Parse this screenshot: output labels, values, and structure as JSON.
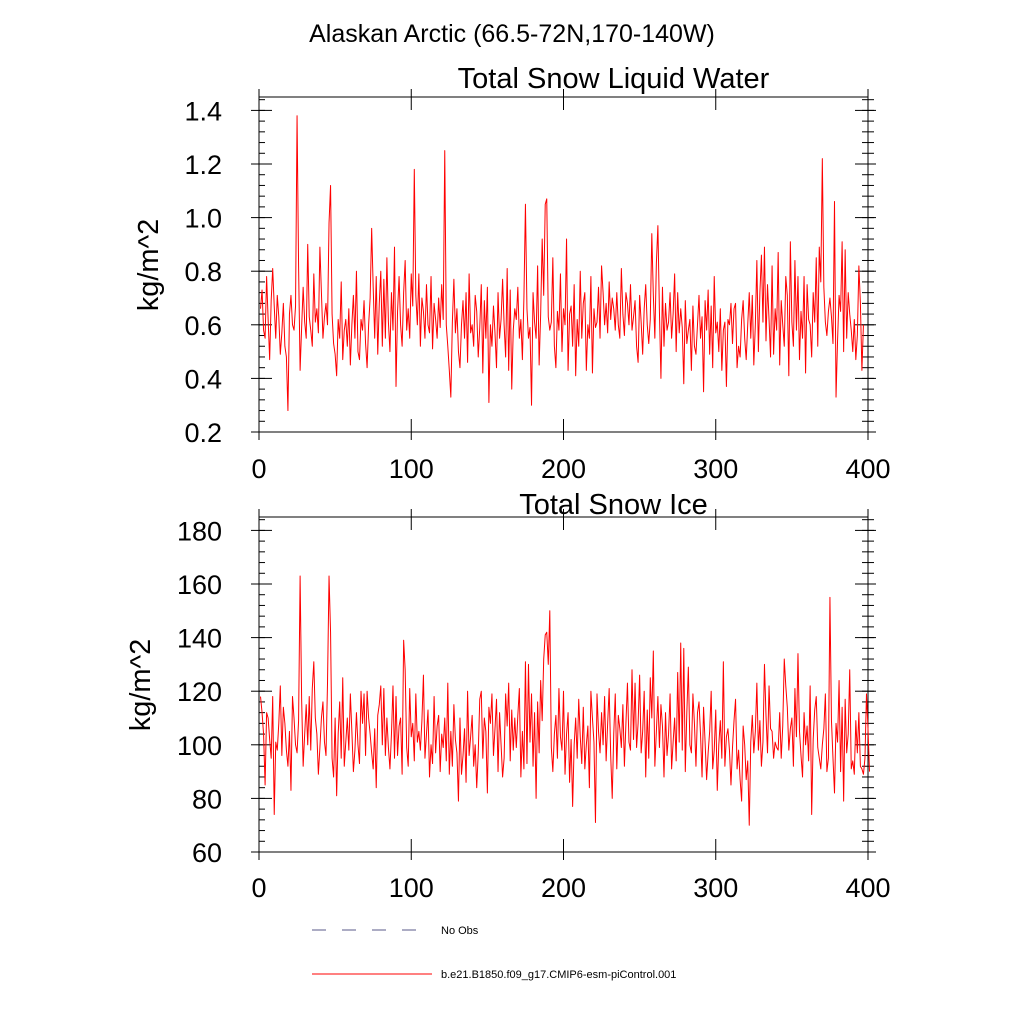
{
  "figure": {
    "title": "Alaskan Arctic (66.5-72N,170-140W)"
  },
  "legend": {
    "entries": [
      {
        "label": "No Obs",
        "color": "#5a5a8a",
        "style": "dashed"
      },
      {
        "label": "b.e21.B1850.f09_g17.CMIP6-esm-piControl.001",
        "color": "#ff0000",
        "style": "solid"
      }
    ]
  },
  "colors": {
    "series": "#ff0000",
    "axis": "#000000"
  },
  "chart_data": [
    {
      "type": "line",
      "title": "Total Snow Liquid Water",
      "ylabel": "kg/m^2",
      "xlabel": "",
      "xlim": [
        0,
        400
      ],
      "ylim": [
        0.2,
        1.45
      ],
      "xticks": [
        0,
        100,
        200,
        300,
        400
      ],
      "xtick_labels": [
        "0",
        "100",
        "200",
        "300",
        "400"
      ],
      "yticks": [
        0.2,
        0.4,
        0.6,
        0.8,
        1.0,
        1.2,
        1.4
      ],
      "ytick_labels": [
        "0.2",
        "0.4",
        "0.6",
        "0.8",
        "1.0",
        "1.2",
        "1.4"
      ],
      "grid": false,
      "series": [
        {
          "name": "b.e21.B1850.f09_g17.CMIP6-esm-piControl.001",
          "x_start": 1,
          "x_step": 1,
          "values": [
            0.66,
            0.73,
            0.58,
            0.55,
            0.78,
            0.62,
            0.47,
            0.69,
            0.81,
            0.67,
            0.55,
            0.71,
            0.63,
            0.49,
            0.57,
            0.68,
            0.52,
            0.48,
            0.28,
            0.64,
            0.71,
            0.6,
            0.58,
            0.67,
            1.38,
            0.82,
            0.43,
            0.59,
            0.74,
            0.61,
            0.55,
            0.9,
            0.63,
            0.58,
            0.52,
            0.79,
            0.61,
            0.66,
            0.57,
            0.89,
            0.72,
            0.55,
            0.63,
            0.68,
            0.6,
            0.98,
            1.12,
            0.64,
            0.53,
            0.49,
            0.41,
            0.62,
            0.55,
            0.76,
            0.47,
            0.58,
            0.62,
            0.52,
            0.66,
            0.45,
            0.6,
            0.71,
            0.55,
            0.8,
            0.5,
            0.47,
            0.62,
            0.58,
            0.69,
            0.53,
            0.44,
            0.6,
            0.7,
            0.96,
            0.74,
            0.55,
            0.78,
            0.49,
            0.68,
            0.8,
            0.52,
            0.77,
            0.55,
            0.85,
            0.61,
            0.5,
            0.72,
            0.58,
            0.89,
            0.37,
            0.65,
            0.78,
            0.6,
            0.52,
            0.72,
            0.84,
            0.58,
            0.66,
            0.55,
            0.79,
            0.67,
            1.18,
            0.71,
            0.6,
            0.79,
            0.52,
            0.7,
            0.65,
            0.55,
            0.75,
            0.6,
            0.57,
            0.78,
            0.51,
            0.68,
            0.62,
            0.55,
            0.7,
            0.59,
            0.75,
            0.62,
            1.25,
            0.6,
            0.52,
            0.43,
            0.33,
            0.61,
            0.77,
            0.57,
            0.66,
            0.5,
            0.44,
            0.6,
            0.69,
            0.55,
            0.72,
            0.46,
            0.79,
            0.57,
            0.6,
            0.52,
            0.71,
            0.65,
            0.48,
            0.59,
            0.75,
            0.42,
            0.69,
            0.55,
            0.74,
            0.31,
            0.6,
            0.52,
            0.67,
            0.57,
            0.44,
            0.72,
            0.55,
            0.62,
            0.77,
            0.6,
            0.48,
            0.81,
            0.43,
            0.73,
            0.36,
            0.58,
            0.66,
            0.62,
            0.74,
            0.55,
            0.62,
            0.47,
            0.7,
            1.05,
            0.66,
            0.55,
            0.59,
            0.3,
            0.72,
            0.61,
            0.55,
            0.82,
            0.45,
            0.64,
            0.92,
            0.71,
            1.05,
            1.07,
            0.63,
            0.58,
            0.61,
            0.85,
            0.52,
            0.44,
            0.65,
            0.58,
            0.79,
            0.5,
            0.66,
            0.6,
            0.92,
            0.43,
            0.64,
            0.67,
            0.52,
            0.75,
            0.41,
            0.62,
            0.52,
            0.8,
            0.55,
            0.68,
            0.72,
            0.43,
            0.6,
            0.55,
            0.78,
            0.42,
            0.66,
            0.59,
            0.61,
            0.74,
            0.55,
            0.82,
            0.72,
            0.6,
            0.68,
            0.57,
            0.76,
            0.62,
            0.7,
            0.66,
            0.58,
            0.72,
            0.6,
            0.55,
            0.81,
            0.64,
            0.56,
            0.72,
            0.68,
            0.6,
            0.75,
            0.58,
            0.63,
            0.69,
            0.52,
            0.46,
            0.71,
            0.61,
            0.49,
            0.66,
            0.75,
            0.6,
            0.53,
            0.62,
            0.94,
            0.71,
            0.55,
            0.83,
            0.97,
            0.65,
            0.4,
            0.74,
            0.52,
            0.68,
            0.58,
            0.61,
            0.72,
            0.55,
            0.64,
            0.79,
            0.5,
            0.72,
            0.57,
            0.66,
            0.59,
            0.38,
            0.69,
            0.53,
            0.58,
            0.62,
            0.43,
            0.67,
            0.52,
            0.49,
            0.6,
            0.71,
            0.55,
            0.63,
            0.35,
            0.69,
            0.58,
            0.73,
            0.49,
            0.67,
            0.44,
            0.78,
            0.57,
            0.61,
            0.5,
            0.66,
            0.43,
            0.58,
            0.61,
            0.37,
            0.62,
            0.6,
            0.68,
            0.53,
            0.66,
            0.68,
            0.44,
            0.52,
            0.48,
            0.62,
            0.69,
            0.55,
            0.47,
            0.6,
            0.72,
            0.55,
            0.71,
            0.45,
            0.6,
            0.84,
            0.5,
            0.72,
            0.86,
            0.61,
            0.89,
            0.54,
            0.75,
            0.62,
            0.48,
            0.82,
            0.49,
            0.66,
            0.58,
            0.87,
            0.45,
            0.69,
            0.6,
            0.52,
            0.78,
            0.71,
            0.41,
            0.91,
            0.61,
            0.52,
            0.84,
            0.58,
            0.78,
            0.47,
            0.65,
            0.55,
            0.78,
            0.42,
            0.75,
            0.62,
            0.6,
            0.48,
            0.72,
            0.61,
            0.85,
            0.52,
            0.89,
            0.76,
            1.22,
            0.74,
            0.61,
            0.56,
            0.65,
            0.7,
            0.63,
            0.53,
            1.06,
            0.33,
            0.54,
            0.71,
            0.65,
            0.91,
            0.5,
            0.88,
            0.55,
            0.72,
            0.64,
            0.58,
            0.5,
            0.62,
            0.47,
            0.56,
            0.82,
            0.68,
            0.43,
            0.6
          ]
        }
      ]
    },
    {
      "type": "line",
      "title": "Total Snow Ice",
      "ylabel": "kg/m^2",
      "xlabel": "",
      "xlim": [
        0,
        400
      ],
      "ylim": [
        60,
        185
      ],
      "xticks": [
        0,
        100,
        200,
        300,
        400
      ],
      "xtick_labels": [
        "0",
        "100",
        "200",
        "300",
        "400"
      ],
      "yticks": [
        60,
        80,
        100,
        120,
        140,
        160,
        180
      ],
      "ytick_labels": [
        "60",
        "80",
        "100",
        "120",
        "140",
        "160",
        "180"
      ],
      "grid": false,
      "series": [
        {
          "name": "b.e21.B1850.f09_g17.CMIP6-esm-piControl.001",
          "x_start": 1,
          "x_step": 1,
          "values": [
            118,
            112,
            104,
            85,
            112,
            110,
            102,
            95,
            118,
            74,
            101,
            98,
            108,
            122,
            96,
            114,
            108,
            98,
            92,
            105,
            83,
            118,
            110,
            100,
            97,
            109,
            163,
            117,
            92,
            104,
            115,
            100,
            118,
            98,
            121,
            131,
            110,
            104,
            89,
            99,
            110,
            116,
            101,
            96,
            123,
            163,
            142,
            95,
            88,
            110,
            81,
            104,
            116,
            95,
            125,
            92,
            101,
            110,
            98,
            119,
            105,
            90,
            98,
            112,
            100,
            93,
            120,
            108,
            119,
            96,
            120,
            110,
            104,
            97,
            91,
            106,
            84,
            111,
            115,
            122,
            100,
            121,
            96,
            110,
            99,
            91,
            104,
            122,
            95,
            118,
            96,
            107,
            110,
            89,
            139,
            128,
            99,
            92,
            121,
            103,
            108,
            94,
            119,
            101,
            105,
            98,
            109,
            126,
            95,
            104,
            113,
            88,
            100,
            93,
            118,
            97,
            107,
            111,
            90,
            104,
            99,
            110,
            94,
            123,
            89,
            105,
            92,
            115,
            102,
            97,
            79,
            110,
            89,
            96,
            106,
            86,
            120,
            96,
            103,
            111,
            92,
            100,
            84,
            97,
            117,
            120,
            95,
            110,
            105,
            82,
            114,
            108,
            119,
            96,
            106,
            117,
            90,
            112,
            100,
            88,
            95,
            119,
            107,
            123,
            94,
            113,
            98,
            110,
            99,
            111,
            121,
            88,
            105,
            91,
            131,
            93,
            130,
            101,
            119,
            92,
            112,
            80,
            116,
            97,
            124,
            109,
            132,
            141,
            142,
            130,
            150,
            99,
            90,
            104,
            111,
            95,
            121,
            103,
            98,
            120,
            89,
            104,
            112,
            86,
            102,
            77,
            100,
            110,
            95,
            117,
            103,
            93,
            114,
            91,
            100,
            107,
            84,
            120,
            110,
            101,
            71,
            119,
            105,
            97,
            112,
            100,
            118,
            94,
            108,
            121,
            96,
            80,
            104,
            119,
            91,
            111,
            106,
            99,
            115,
            92,
            108,
            123,
            101,
            98,
            128,
            102,
            123,
            99,
            108,
            126,
            97,
            105,
            120,
            88,
            113,
            95,
            125,
            110,
            135,
            92,
            105,
            118,
            99,
            115,
            107,
            88,
            112,
            96,
            104,
            119,
            91,
            101,
            110,
            94,
            127,
            101,
            138,
            98,
            136,
            90,
            112,
            129,
            100,
            97,
            119,
            108,
            92,
            112,
            116,
            104,
            88,
            114,
            101,
            87,
            97,
            105,
            120,
            91,
            98,
            113,
            83,
            100,
            109,
            95,
            131,
            92,
            103,
            106,
            98,
            85,
            99,
            109,
            117,
            91,
            98,
            87,
            79,
            107,
            100,
            87,
            94,
            70,
            101,
            111,
            97,
            105,
            123,
            98,
            109,
            92,
            101,
            130,
            111,
            97,
            122,
            106,
            105,
            95,
            101,
            99,
            98,
            112,
            95,
            107,
            132,
            122,
            114,
            98,
            106,
            110,
            92,
            121,
            103,
            134,
            105,
            96,
            88,
            112,
            100,
            107,
            94,
            122,
            74,
            102,
            113,
            118,
            99,
            95,
            91,
            100,
            106,
            119,
            90,
            95,
            155,
            109,
            95,
            82,
            108,
            101,
            124,
            90,
            114,
            79,
            117,
            97,
            104,
            128,
            91,
            94,
            89,
            109,
            97,
            112,
            92,
            91,
            89,
            95,
            119,
            106,
            90
          ]
        }
      ]
    }
  ]
}
